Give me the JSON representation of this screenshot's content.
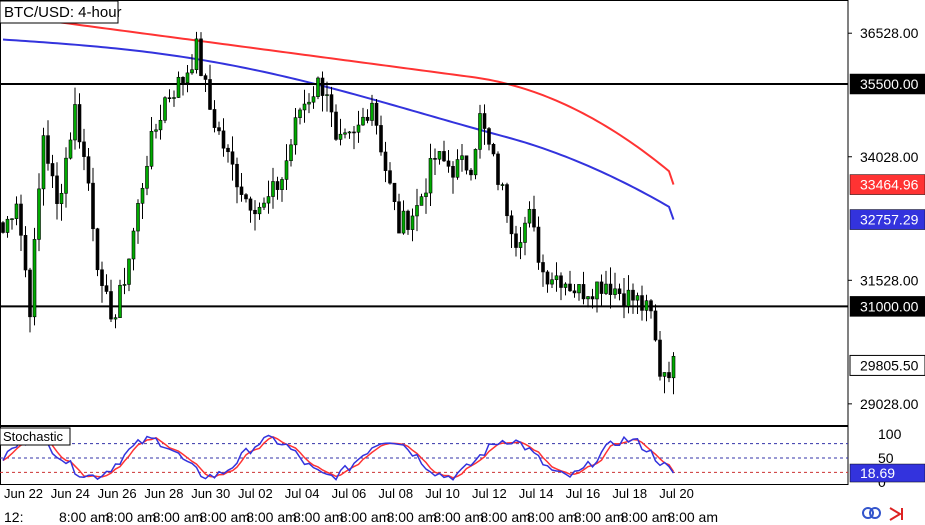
{
  "chart_data": {
    "type": "candlestick",
    "title": "BTC/USD: 4-hour",
    "price_axis": {
      "ticks": [
        36528.0,
        34028.0,
        31528.0,
        29028.0
      ],
      "tick_labels": [
        "36528.00",
        "34028.00",
        "31528.00",
        "29028.00"
      ],
      "range": [
        28600,
        37200
      ]
    },
    "horizontal_levels": [
      {
        "value": 35500.0,
        "label": "35500.00",
        "color": "#000000"
      },
      {
        "value": 31000.0,
        "label": "31000.00",
        "color": "#000000"
      }
    ],
    "series": [
      {
        "value": 33464.96,
        "label": "33464.96",
        "color": "#ff3333"
      },
      {
        "value": 32757.29,
        "label": "32757.29",
        "color": "#3333dd"
      }
    ],
    "last_price": {
      "value": 29805.5,
      "label": "29805.50"
    },
    "date_labels": [
      "Jun 22",
      "Jun 24",
      "Jun 26",
      "Jun 28",
      "Jun 30",
      "Jul 02",
      "Jul 04",
      "Jul 06",
      "Jul 08",
      "Jul 10",
      "Jul 12",
      "Jul 14",
      "Jul 16",
      "Jul 18",
      "Jul 20"
    ],
    "time_labels": [
      "12:",
      "8:00 am",
      "8:00 am",
      "8:00 am",
      "8:00 am",
      "8:00 am",
      "8:00 am",
      "8:00 am",
      "8:00 am",
      "8:00 am",
      "8:00 am",
      "8:00 am",
      "8:00 am",
      "8:00 am",
      "8:00 am"
    ],
    "stochastic": {
      "title": "Stochastic",
      "ticks": [
        100,
        50,
        0
      ],
      "tick_labels": [
        "100",
        "50",
        "0"
      ],
      "levels": [
        {
          "value": 80,
          "color": "#3333aa"
        },
        {
          "value": 50,
          "color": "#3333aa"
        },
        {
          "value": 20,
          "color": "#cc3333"
        }
      ],
      "current": {
        "value": 18.69,
        "label": "18.69"
      },
      "k_color": "#3333dd",
      "d_color": "#ff3333"
    }
  }
}
